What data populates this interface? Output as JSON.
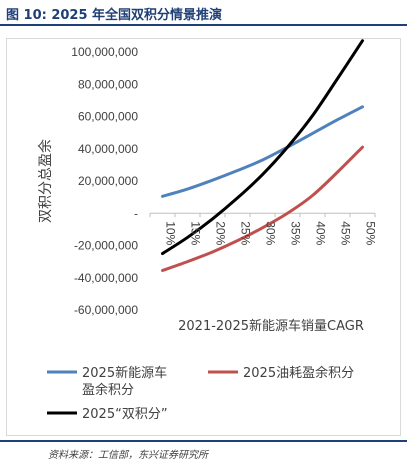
{
  "figure": {
    "title": "图 10:   2025 年全国双积分情景推演",
    "source": "资料来源：工信部，东兴证券研究所"
  },
  "chart_data": {
    "type": "line",
    "title": "",
    "xlabel": "2021-2025新能源车销量CAGR",
    "ylabel": "双积分总盈余",
    "categories": [
      "10%",
      "15%",
      "20%",
      "25%",
      "30%",
      "35%",
      "40%",
      "45%",
      "50%"
    ],
    "ylim": [
      -60000000,
      100000000
    ],
    "yticks": [
      -60000000,
      -40000000,
      -20000000,
      0,
      20000000,
      40000000,
      60000000,
      80000000,
      100000000
    ],
    "ytick_labels": [
      "-60,000,000",
      "-40,000,000",
      "-20,000,000",
      "-",
      "20,000,000",
      "40,000,000",
      "60,000,000",
      "80,000,000",
      "100,000,000"
    ],
    "grid": false,
    "legend_position": "bottom",
    "series": [
      {
        "name": "2025新能源车盈余积分",
        "legend_lines": [
          "2025新能源车",
          "盈余积分"
        ],
        "color": "#4f81bd",
        "values": [
          10500000,
          15000000,
          20500000,
          26500000,
          33000000,
          41000000,
          49500000,
          58000000,
          66000000
        ]
      },
      {
        "name": "2025油耗盈余积分",
        "legend_lines": [
          "2025油耗盈余积分"
        ],
        "color": "#c0504d",
        "values": [
          -35500000,
          -30000000,
          -24000000,
          -17000000,
          -9000000,
          0,
          11000000,
          25500000,
          41000000
        ]
      },
      {
        "name": "2025“双积分”",
        "legend_lines": [
          "2025“双积分”"
        ],
        "color": "#000000",
        "values": [
          -25000000,
          -15000000,
          -3500000,
          9500000,
          24000000,
          41000000,
          60500000,
          83500000,
          107000000
        ]
      }
    ]
  }
}
